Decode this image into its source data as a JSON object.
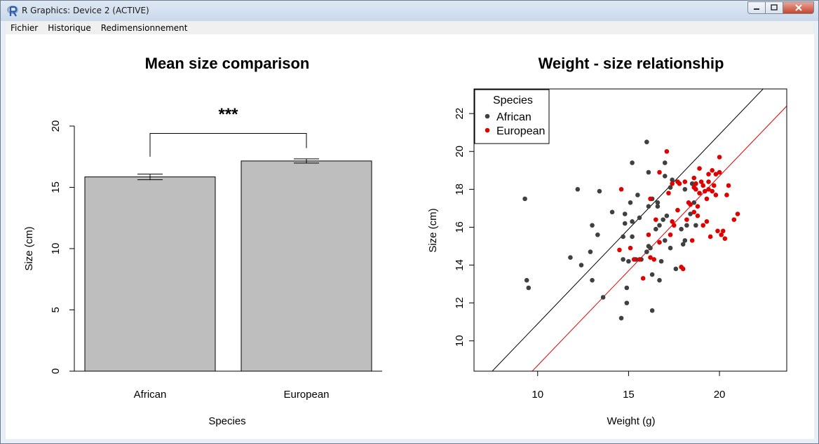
{
  "window": {
    "title": "R Graphics: Device 2 (ACTIVE)",
    "menu": [
      "Fichier",
      "Historique",
      "Redimensionnement"
    ],
    "controls": [
      "minimize-icon",
      "maximize-icon",
      "close-icon"
    ],
    "app_icon": "r-logo-icon"
  },
  "chart_data": [
    {
      "type": "bar",
      "title": "Mean size comparison",
      "xlabel": "Species",
      "ylabel": "Size (cm)",
      "categories": [
        "African",
        "European"
      ],
      "values": [
        15.85,
        17.15
      ],
      "error_bars": [
        [
          15.62,
          16.08
        ],
        [
          16.98,
          17.32
        ]
      ],
      "ylim": [
        0,
        20
      ],
      "yticks": [
        0,
        5,
        10,
        15,
        20
      ],
      "bar_color": "#bebebe",
      "significance": "***"
    },
    {
      "type": "scatter",
      "title": "Weight - size relationship",
      "xlabel": "Weight (g)",
      "ylabel": "Size (cm)",
      "xlim": [
        6.5,
        23.7
      ],
      "ylim": [
        8.4,
        23.3
      ],
      "xticks": [
        10,
        15,
        20
      ],
      "yticks": [
        10,
        12,
        14,
        16,
        18,
        20,
        22
      ],
      "legend_title": "Species",
      "legend_position": "top-left",
      "series": [
        {
          "name": "African",
          "color": "#404040",
          "points": [
            [
              9.3,
              17.5
            ],
            [
              9.4,
              13.2
            ],
            [
              9.5,
              12.8
            ],
            [
              11.8,
              14.4
            ],
            [
              12.2,
              18.0
            ],
            [
              12.4,
              14.0
            ],
            [
              12.9,
              14.7
            ],
            [
              13.0,
              16.1
            ],
            [
              13.0,
              13.2
            ],
            [
              13.3,
              15.6
            ],
            [
              13.4,
              17.9
            ],
            [
              13.6,
              12.3
            ],
            [
              14.1,
              16.8
            ],
            [
              14.6,
              11.2
            ],
            [
              14.7,
              14.3
            ],
            [
              14.7,
              15.5
            ],
            [
              14.8,
              16.7
            ],
            [
              14.8,
              16.2
            ],
            [
              14.9,
              12.8
            ],
            [
              14.9,
              12.0
            ],
            [
              15.0,
              14.2
            ],
            [
              15.1,
              17.3
            ],
            [
              15.2,
              15.5
            ],
            [
              15.2,
              19.4
            ],
            [
              15.2,
              16.3
            ],
            [
              15.4,
              14.3
            ],
            [
              15.5,
              17.7
            ],
            [
              15.6,
              16.5
            ],
            [
              15.7,
              14.3
            ],
            [
              16.0,
              14.7
            ],
            [
              16.0,
              20.5
            ],
            [
              16.1,
              15.0
            ],
            [
              16.1,
              18.9
            ],
            [
              16.1,
              17.1
            ],
            [
              16.2,
              14.9
            ],
            [
              16.3,
              11.6
            ],
            [
              16.3,
              17.5
            ],
            [
              16.3,
              13.5
            ],
            [
              16.5,
              15.9
            ],
            [
              16.6,
              17.1
            ],
            [
              16.6,
              17.3
            ],
            [
              16.7,
              16.1
            ],
            [
              16.7,
              13.2
            ],
            [
              16.8,
              14.2
            ],
            [
              16.9,
              16.4
            ],
            [
              17.0,
              15.3
            ],
            [
              17.0,
              18.7
            ],
            [
              17.0,
              19.4
            ],
            [
              17.1,
              16.6
            ],
            [
              17.3,
              14.9
            ],
            [
              17.3,
              18.1
            ],
            [
              17.4,
              18.5
            ],
            [
              17.6,
              13.8
            ],
            [
              17.9,
              15.9
            ],
            [
              18.0,
              15.1
            ],
            [
              18.1,
              15.3
            ],
            [
              18.1,
              18.0
            ],
            [
              18.2,
              16.1
            ],
            [
              18.4,
              16.7
            ],
            [
              18.5,
              18.3
            ],
            [
              18.6,
              17.3
            ],
            [
              18.7,
              16.1
            ]
          ]
        },
        {
          "name": "European",
          "color": "#df0000",
          "points": [
            [
              14.5,
              14.8
            ],
            [
              14.6,
              18.0
            ],
            [
              15.1,
              14.9
            ],
            [
              15.3,
              14.3
            ],
            [
              15.6,
              14.3
            ],
            [
              15.8,
              13.3
            ],
            [
              16.1,
              15.6
            ],
            [
              16.2,
              14.4
            ],
            [
              16.2,
              17.5
            ],
            [
              16.4,
              14.3
            ],
            [
              16.5,
              16.4
            ],
            [
              16.7,
              18.9
            ],
            [
              16.7,
              15.2
            ],
            [
              17.1,
              20.0
            ],
            [
              17.2,
              17.8
            ],
            [
              17.3,
              15.6
            ],
            [
              17.4,
              18.3
            ],
            [
              17.4,
              16.3
            ],
            [
              17.5,
              16.1
            ],
            [
              17.7,
              16.9
            ],
            [
              17.7,
              18.4
            ],
            [
              17.8,
              18.3
            ],
            [
              17.9,
              13.9
            ],
            [
              18.0,
              13.8
            ],
            [
              18.1,
              18.4
            ],
            [
              18.2,
              16.4
            ],
            [
              18.3,
              17.3
            ],
            [
              18.4,
              17.2
            ],
            [
              18.5,
              15.3
            ],
            [
              18.6,
              18.1
            ],
            [
              18.6,
              18.6
            ],
            [
              18.6,
              16.8
            ],
            [
              18.7,
              18.3
            ],
            [
              18.7,
              18.0
            ],
            [
              18.8,
              17.1
            ],
            [
              18.8,
              16.6
            ],
            [
              18.9,
              19.1
            ],
            [
              18.9,
              17.8
            ],
            [
              19.0,
              18.4
            ],
            [
              19.1,
              18.2
            ],
            [
              19.1,
              16.1
            ],
            [
              19.2,
              17.9
            ],
            [
              19.3,
              16.3
            ],
            [
              19.3,
              17.5
            ],
            [
              19.4,
              18.0
            ],
            [
              19.4,
              18.8
            ],
            [
              19.4,
              18.4
            ],
            [
              19.5,
              15.5
            ],
            [
              19.6,
              19.0
            ],
            [
              19.6,
              17.9
            ],
            [
              19.7,
              18.2
            ],
            [
              19.8,
              18.8
            ],
            [
              19.8,
              17.7
            ],
            [
              19.9,
              15.8
            ],
            [
              20.0,
              19.7
            ],
            [
              20.0,
              18.9
            ],
            [
              20.1,
              15.6
            ],
            [
              20.2,
              15.8
            ],
            [
              20.3,
              15.4
            ],
            [
              20.4,
              17.7
            ],
            [
              20.5,
              18.2
            ],
            [
              20.8,
              16.4
            ],
            [
              21.0,
              16.7
            ]
          ]
        }
      ],
      "lines": [
        {
          "series": "African",
          "color": "#000000",
          "slope": 1.0,
          "intercept": 0.9
        },
        {
          "series": "European",
          "color": "#df0000",
          "slope": 1.0,
          "intercept": -1.3
        }
      ]
    }
  ]
}
